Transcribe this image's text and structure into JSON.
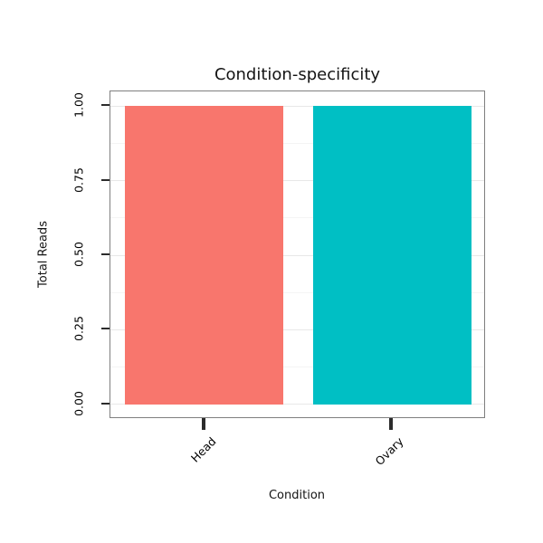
{
  "chart_data": {
    "type": "bar",
    "title": "Condition-specificity",
    "xlabel": "Condition",
    "ylabel": "Total Reads",
    "categories": [
      "Head",
      "Ovary"
    ],
    "values": [
      1.0,
      1.0
    ],
    "colors": [
      "#F8766D",
      "#00BFC4"
    ],
    "ylim": [
      0,
      1.0
    ],
    "yticks": [
      0.0,
      0.25,
      0.5,
      0.75,
      1.0
    ],
    "ytick_labels": [
      "0.00",
      "0.25",
      "0.50",
      "0.75",
      "1.00"
    ],
    "grid": true,
    "legend": "none",
    "grid_major_color": "#e8e8e8",
    "grid_minor_color": "#f4f4f4",
    "panel_border_color": "#7f7f7f",
    "tick_color": "#2b2b2b",
    "text_color": "#000000",
    "background": "#ffffff"
  }
}
